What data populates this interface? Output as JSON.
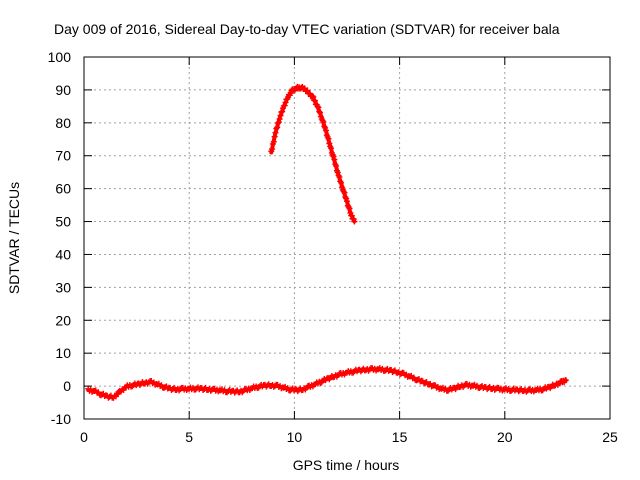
{
  "chart_data": {
    "type": "scatter",
    "title": "Day 009 of 2016, Sidereal Day-to-day VTEC variation (SDTVAR) for receiver bala",
    "xlabel": "GPS time / hours",
    "ylabel": "SDTVAR / TECUs",
    "xlim": [
      0,
      25
    ],
    "ylim": [
      -10,
      100
    ],
    "xticks": [
      0,
      5,
      10,
      15,
      20,
      25
    ],
    "yticks": [
      -10,
      0,
      10,
      20,
      30,
      40,
      50,
      60,
      70,
      80,
      90,
      100
    ],
    "grid": true,
    "marker": "plus",
    "color": "#ff0000",
    "series": [
      {
        "name": "near-zero variation",
        "x": [
          0.2,
          0.5,
          0.8,
          1.1,
          1.4,
          1.7,
          2.0,
          2.3,
          2.6,
          2.9,
          3.2,
          3.5,
          3.8,
          4.1,
          4.4,
          4.7,
          5.0,
          5.3,
          5.6,
          5.9,
          6.2,
          6.5,
          6.8,
          7.1,
          7.4,
          7.7,
          8.0,
          8.3,
          8.6,
          8.9,
          9.2,
          9.5,
          9.8,
          10.1,
          10.4,
          10.7,
          11.0,
          11.3,
          11.6,
          11.9,
          12.2,
          12.5,
          12.8,
          13.1,
          13.4,
          13.7,
          14.0,
          14.3,
          14.6,
          14.9,
          15.2,
          15.5,
          15.8,
          16.1,
          16.4,
          16.7,
          17.0,
          17.3,
          17.6,
          17.9,
          18.2,
          18.5,
          18.8,
          19.1,
          19.4,
          19.7,
          20.0,
          20.3,
          20.6,
          20.9,
          21.2,
          21.5,
          21.8,
          22.1,
          22.4,
          22.7,
          22.9
        ],
        "y": [
          -1.2,
          -1.5,
          -2.4,
          -3.1,
          -3.4,
          -1.8,
          -0.2,
          0.3,
          0.6,
          1.0,
          1.2,
          0.5,
          -0.2,
          -0.8,
          -1.0,
          -0.9,
          -0.8,
          -0.7,
          -0.8,
          -1.0,
          -1.2,
          -1.3,
          -1.5,
          -1.6,
          -1.7,
          -1.2,
          -0.6,
          -0.1,
          0.2,
          0.2,
          0.0,
          -0.5,
          -1.0,
          -1.2,
          -1.0,
          -0.2,
          0.6,
          1.5,
          2.3,
          3.0,
          3.6,
          4.1,
          4.5,
          4.8,
          5.0,
          5.1,
          5.1,
          5.0,
          4.7,
          4.2,
          3.6,
          2.9,
          2.1,
          1.3,
          0.6,
          -0.2,
          -0.8,
          -1.1,
          -0.7,
          0.0,
          0.3,
          0.1,
          -0.2,
          -0.5,
          -0.7,
          -0.9,
          -1.0,
          -1.1,
          -1.2,
          -1.3,
          -1.4,
          -1.2,
          -0.9,
          -0.4,
          0.4,
          1.2,
          1.8
        ]
      },
      {
        "name": "peak segment",
        "x": [
          8.9,
          9.1,
          9.3,
          9.5,
          9.7,
          9.9,
          10.1,
          10.3,
          10.5,
          10.7,
          10.9,
          11.1,
          11.3,
          11.5,
          11.7,
          11.9,
          12.1,
          12.3,
          12.5,
          12.7,
          12.85
        ],
        "y": [
          71,
          77,
          81.5,
          85,
          88,
          89.8,
          90.5,
          90.8,
          90.2,
          89,
          87.5,
          85,
          81.5,
          77.5,
          73,
          68.5,
          64,
          60,
          56,
          52,
          50
        ]
      }
    ]
  }
}
